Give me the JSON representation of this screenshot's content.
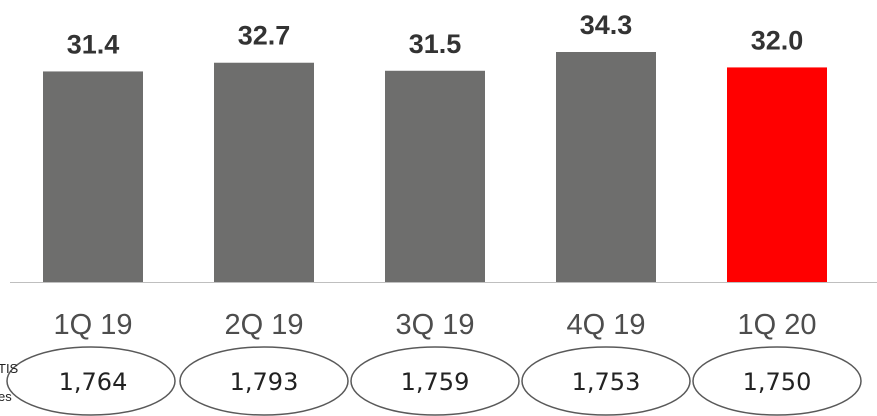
{
  "chart_data": {
    "type": "bar",
    "categories": [
      "1Q 19",
      "2Q 19",
      "3Q 19",
      "4Q 19",
      "1Q 20"
    ],
    "values": [
      31.4,
      32.7,
      31.5,
      34.3,
      32.0
    ],
    "value_labels": [
      "31.4",
      "32.7",
      "31.5",
      "34.3",
      "32.0"
    ],
    "circled_values": [
      "1,764",
      "1,793",
      "1,759",
      "1,753",
      "1,750"
    ],
    "left_fragment_lines": [
      "TIS",
      "es"
    ],
    "colors": {
      "bar": "#6e6e6d",
      "highlight_bar": "#ff0000",
      "baseline": "#bfbfbf",
      "ellipse_stroke": "#595959"
    },
    "highlight_index": 4,
    "ylim": [
      0,
      34.3
    ],
    "grid": false
  }
}
